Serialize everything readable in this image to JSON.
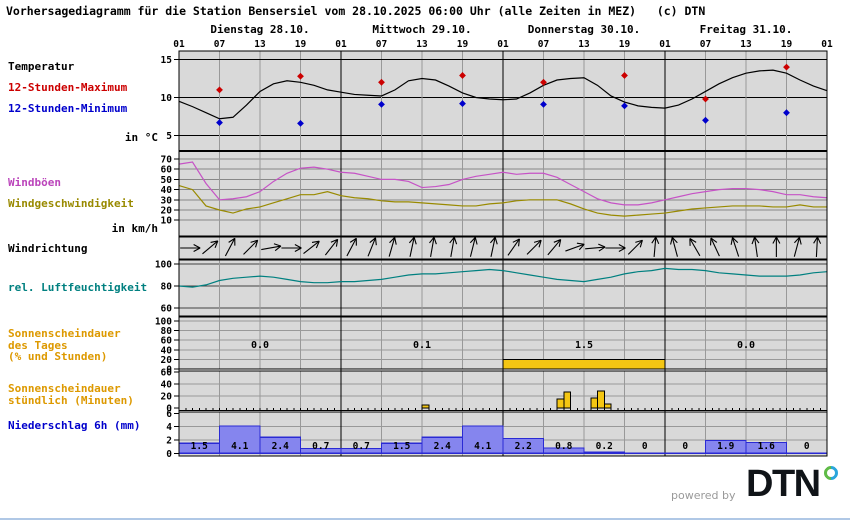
{
  "title": "Vorhersagediagramm für die Station Bensersiel vom 28.10.2025 06:00 Uhr (alle Zeiten in MEZ)   (c) DTN",
  "header": {
    "days": [
      "Dienstag 28.10.",
      "Mittwoch 29.10.",
      "Donnerstag 30.10.",
      "Freitag 31.10."
    ],
    "hour_ticks": [
      "01",
      "07",
      "13",
      "19",
      "01",
      "07",
      "13",
      "19",
      "01",
      "07",
      "13",
      "19",
      "01",
      "07",
      "13",
      "19",
      "01"
    ]
  },
  "labels": {
    "temperature": "Temperatur",
    "max12": "12-Stunden-Maximum",
    "min12": "12-Stunden-Minimum",
    "temp_unit": "in °C",
    "gusts": "Windböen",
    "windspeed": "Windgeschwindigkeit",
    "wind_unit": "in km/h",
    "winddir": "Windrichtung",
    "humidity": "rel. Luftfeuchtigkeit",
    "sun_daily": [
      "Sonnenscheindauer",
      "des Tages",
      "(% und Stunden)"
    ],
    "sun_hourly": [
      "Sonnenscheindauer",
      "stündlich (Minuten)"
    ],
    "precip": "Niederschlag 6h (mm)"
  },
  "footer": {
    "powered_by": "powered by",
    "logo": "DTN"
  },
  "colors": {
    "panel_bg": "#d9d9d9",
    "grid_minor": "#999999",
    "grid_major": "#000000",
    "max": "#cc0000",
    "min": "#0000cc",
    "gusts": "#c653c6",
    "wind": "#998a00",
    "humidity": "#008080",
    "sun": "#f4c613",
    "sun_edge": "#000000",
    "precip_fill": "#8585ee",
    "precip_edge": "#2a2ad4",
    "label_orange": "#dd9900",
    "bottom_rule": "#b0c8e6"
  },
  "axis": {
    "x_start_hour": 0,
    "x_step_hours": 2,
    "x_span_hours": 96
  },
  "chart_data": [
    {
      "id": "temperature",
      "type": "line",
      "unit": "°C",
      "yticks": [
        15,
        10,
        5
      ],
      "series": [
        {
          "name": "Temperatur",
          "color": "#000000",
          "values": [
            9.5,
            8.8,
            8.0,
            7.2,
            7.4,
            9.0,
            10.8,
            11.8,
            12.2,
            12.0,
            11.6,
            11.0,
            10.7,
            10.4,
            10.3,
            10.2,
            11.0,
            12.2,
            12.5,
            12.3,
            11.5,
            10.6,
            10.0,
            9.8,
            9.7,
            9.8,
            10.6,
            11.6,
            12.3,
            12.5,
            12.6,
            11.6,
            10.2,
            9.4,
            8.9,
            8.7,
            8.6,
            9.0,
            9.8,
            10.8,
            11.8,
            12.6,
            13.2,
            13.5,
            13.6,
            13.2,
            12.3,
            11.5,
            10.9
          ]
        }
      ],
      "markers": [
        {
          "name": "12-Stunden-Maximum",
          "color": "#cc0000",
          "points": [
            [
              6,
              11.0
            ],
            [
              18,
              12.8
            ],
            [
              30,
              12.0
            ],
            [
              42,
              12.9
            ],
            [
              54,
              12.0
            ],
            [
              66,
              12.9
            ],
            [
              78,
              9.8
            ],
            [
              90,
              14.0
            ]
          ]
        },
        {
          "name": "12-Stunden-Minimum",
          "color": "#0000cc",
          "points": [
            [
              6,
              6.7
            ],
            [
              18,
              6.6
            ],
            [
              30,
              9.1
            ],
            [
              42,
              9.2
            ],
            [
              54,
              9.1
            ],
            [
              66,
              8.9
            ],
            [
              78,
              7.0
            ],
            [
              90,
              8.0
            ]
          ]
        }
      ]
    },
    {
      "id": "wind",
      "type": "line",
      "unit": "km/h",
      "yticks": [
        70,
        60,
        50,
        40,
        30,
        20,
        10
      ],
      "series": [
        {
          "name": "Windböen",
          "color": "#c653c6",
          "values": [
            65,
            67,
            46,
            30,
            31,
            33,
            38,
            48,
            56,
            61,
            62,
            60,
            57,
            56,
            53,
            50,
            50,
            48,
            42,
            43,
            45,
            50,
            53,
            55,
            57,
            55,
            56,
            56,
            52,
            45,
            38,
            31,
            27,
            25,
            25,
            27,
            30,
            33,
            36,
            38,
            40,
            41,
            41,
            40,
            38,
            35,
            35,
            33,
            32
          ]
        },
        {
          "name": "Windgeschwindigkeit",
          "color": "#998a00",
          "values": [
            44,
            40,
            24,
            20,
            17,
            21,
            23,
            27,
            31,
            35,
            35,
            38,
            34,
            32,
            31,
            29,
            28,
            28,
            27,
            26,
            25,
            24,
            24,
            26,
            27,
            29,
            30,
            30,
            30,
            26,
            21,
            17,
            15,
            14,
            15,
            16,
            17,
            19,
            21,
            22,
            23,
            24,
            24,
            24,
            23,
            23,
            25,
            23,
            23
          ]
        }
      ]
    },
    {
      "id": "winddir",
      "type": "arrows",
      "label": "Windrichtung",
      "arrow_step_hours": 3,
      "angles_deg": [
        90,
        50,
        28,
        45,
        80,
        90,
        52,
        38,
        28,
        22,
        16,
        12,
        10,
        10,
        14,
        12,
        35,
        45,
        40,
        70,
        85,
        90,
        45,
        5,
        -15,
        -30,
        -25,
        -18,
        -8,
        0,
        15,
        3
      ]
    },
    {
      "id": "humidity",
      "type": "line",
      "unit": "%",
      "yticks": [
        100,
        80,
        60
      ],
      "series": [
        {
          "name": "rel. Luftfeuchtigkeit",
          "color": "#008080",
          "values": [
            80,
            79,
            81,
            85,
            87,
            88,
            89,
            88,
            86,
            84,
            83,
            83,
            84,
            84,
            85,
            86,
            88,
            90,
            91,
            91,
            92,
            93,
            94,
            95,
            94,
            92,
            90,
            88,
            86,
            85,
            84,
            86,
            88,
            91,
            93,
            94,
            96,
            95,
            95,
            94,
            92,
            91,
            90,
            89,
            89,
            89,
            90,
            92,
            93
          ]
        }
      ]
    },
    {
      "id": "sunshine_daily",
      "type": "bar",
      "unit": "% und Stunden",
      "yticks": [
        100,
        80,
        60,
        40,
        20,
        0
      ],
      "day_values": [
        "0.0",
        "0.1",
        "1.5",
        "0.0"
      ],
      "bars": [
        {
          "day_index": 2,
          "percent": 20
        }
      ]
    },
    {
      "id": "sunshine_hourly",
      "type": "bar",
      "unit": "Minuten",
      "yticks": [
        60,
        40,
        20,
        0
      ],
      "bars": [
        [
          36,
          5
        ],
        [
          56,
          15
        ],
        [
          57,
          27
        ],
        [
          61,
          17
        ],
        [
          62,
          28
        ],
        [
          63,
          7
        ]
      ]
    },
    {
      "id": "precipitation",
      "type": "bar",
      "unit": "mm",
      "period_hours": 6,
      "yticks": [
        6,
        4,
        2,
        0
      ],
      "values": [
        1.5,
        4.1,
        2.4,
        0.7,
        0.7,
        1.5,
        2.4,
        4.1,
        2.2,
        0.8,
        0.2,
        0,
        0,
        1.9,
        1.6,
        0
      ],
      "labels": [
        "1.5",
        "4.1",
        "2.4",
        "0.7",
        "0.7",
        "1.5",
        "2.4",
        "4.1",
        "2.2",
        "0.8",
        "0.2",
        "0",
        "0",
        "1.9",
        "1.6",
        "0"
      ]
    }
  ]
}
